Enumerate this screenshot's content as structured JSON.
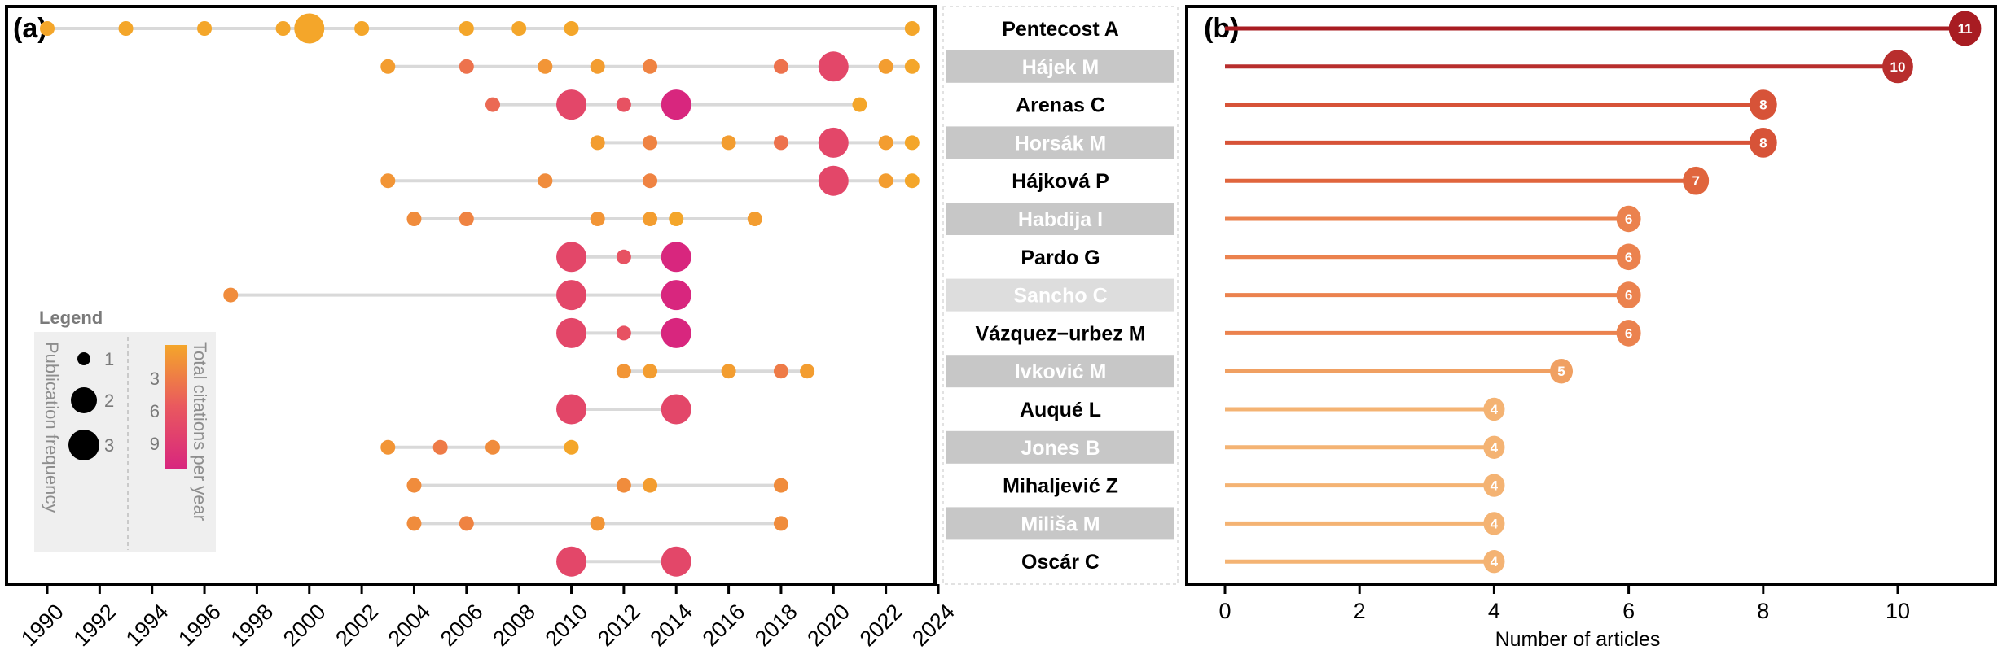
{
  "chart_data": [
    {
      "type": "scatter",
      "panel_label": "(a)",
      "xlabel": "",
      "ylabel": "",
      "x_ticks": [
        "1990",
        "1992",
        "1994",
        "1996",
        "1998",
        "2000",
        "2002",
        "2004",
        "2006",
        "2008",
        "2010",
        "2012",
        "2014",
        "2016",
        "2018",
        "2020",
        "2022",
        "2024"
      ],
      "xlim": [
        1990,
        2024
      ],
      "authors": [
        "Pentecost A",
        "Hájek M",
        "Arenas C",
        "Horsák M",
        "Hájková P",
        "Habdija I",
        "Pardo G",
        "Sancho C",
        "Vázquez−urbez M",
        "Ivković M",
        "Auqué L",
        "Jones B",
        "Mihaljević Z",
        "Miliša M",
        "Oscár C"
      ],
      "series": [
        {
          "author": "Pentecost A",
          "points": [
            {
              "year": 1990,
              "freq": 1,
              "cit": 1
            },
            {
              "year": 1993,
              "freq": 1,
              "cit": 1
            },
            {
              "year": 1996,
              "freq": 1,
              "cit": 1
            },
            {
              "year": 1999,
              "freq": 1,
              "cit": 1
            },
            {
              "year": 2000,
              "freq": 3,
              "cit": 1
            },
            {
              "year": 2002,
              "freq": 1,
              "cit": 1
            },
            {
              "year": 2006,
              "freq": 1,
              "cit": 1
            },
            {
              "year": 2008,
              "freq": 1,
              "cit": 1
            },
            {
              "year": 2010,
              "freq": 1,
              "cit": 1
            },
            {
              "year": 2023,
              "freq": 1,
              "cit": 1
            }
          ]
        },
        {
          "author": "Hájek M",
          "points": [
            {
              "year": 2003,
              "freq": 1,
              "cit": 1.5
            },
            {
              "year": 2006,
              "freq": 1,
              "cit": 4
            },
            {
              "year": 2009,
              "freq": 1,
              "cit": 2
            },
            {
              "year": 2011,
              "freq": 1,
              "cit": 1.5
            },
            {
              "year": 2013,
              "freq": 1,
              "cit": 3
            },
            {
              "year": 2018,
              "freq": 1,
              "cit": 4
            },
            {
              "year": 2020,
              "freq": 3,
              "cit": 7
            },
            {
              "year": 2022,
              "freq": 1,
              "cit": 1.5
            },
            {
              "year": 2023,
              "freq": 1,
              "cit": 1
            }
          ]
        },
        {
          "author": "Arenas C",
          "points": [
            {
              "year": 2007,
              "freq": 1,
              "cit": 4.5
            },
            {
              "year": 2010,
              "freq": 3,
              "cit": 7
            },
            {
              "year": 2012,
              "freq": 1,
              "cit": 6
            },
            {
              "year": 2014,
              "freq": 3,
              "cit": 10
            },
            {
              "year": 2021,
              "freq": 1,
              "cit": 1
            }
          ]
        },
        {
          "author": "Horsák M",
          "points": [
            {
              "year": 2011,
              "freq": 1,
              "cit": 1.5
            },
            {
              "year": 2013,
              "freq": 1,
              "cit": 3
            },
            {
              "year": 2016,
              "freq": 1,
              "cit": 1.5
            },
            {
              "year": 2018,
              "freq": 1,
              "cit": 4
            },
            {
              "year": 2020,
              "freq": 3,
              "cit": 7
            },
            {
              "year": 2022,
              "freq": 1,
              "cit": 1.5
            },
            {
              "year": 2023,
              "freq": 1,
              "cit": 1
            }
          ]
        },
        {
          "author": "Hájková P",
          "points": [
            {
              "year": 2003,
              "freq": 1,
              "cit": 2
            },
            {
              "year": 2009,
              "freq": 1,
              "cit": 2.5
            },
            {
              "year": 2013,
              "freq": 1,
              "cit": 3
            },
            {
              "year": 2020,
              "freq": 3,
              "cit": 7
            },
            {
              "year": 2022,
              "freq": 1,
              "cit": 1.5
            },
            {
              "year": 2023,
              "freq": 1,
              "cit": 1
            }
          ]
        },
        {
          "author": "Habdija I",
          "points": [
            {
              "year": 2004,
              "freq": 1,
              "cit": 2.5
            },
            {
              "year": 2006,
              "freq": 1,
              "cit": 3
            },
            {
              "year": 2011,
              "freq": 1,
              "cit": 2
            },
            {
              "year": 2013,
              "freq": 1,
              "cit": 1.5
            },
            {
              "year": 2014,
              "freq": 1,
              "cit": 1
            },
            {
              "year": 2017,
              "freq": 1,
              "cit": 1.5
            }
          ]
        },
        {
          "author": "Pardo G",
          "points": [
            {
              "year": 2010,
              "freq": 3,
              "cit": 7
            },
            {
              "year": 2012,
              "freq": 1,
              "cit": 6
            },
            {
              "year": 2014,
              "freq": 3,
              "cit": 10
            }
          ]
        },
        {
          "author": "Sancho C",
          "points": [
            {
              "year": 1997,
              "freq": 1,
              "cit": 2.5
            },
            {
              "year": 2010,
              "freq": 3,
              "cit": 7
            },
            {
              "year": 2014,
              "freq": 3,
              "cit": 10
            }
          ]
        },
        {
          "author": "Vázquez−urbez M",
          "points": [
            {
              "year": 2010,
              "freq": 3,
              "cit": 7
            },
            {
              "year": 2012,
              "freq": 1,
              "cit": 6
            },
            {
              "year": 2014,
              "freq": 3,
              "cit": 10
            }
          ]
        },
        {
          "author": "Ivković M",
          "points": [
            {
              "year": 2012,
              "freq": 1,
              "cit": 2
            },
            {
              "year": 2013,
              "freq": 1,
              "cit": 1.5
            },
            {
              "year": 2016,
              "freq": 1,
              "cit": 1.5
            },
            {
              "year": 2018,
              "freq": 1,
              "cit": 3.5
            },
            {
              "year": 2019,
              "freq": 1,
              "cit": 1.5
            }
          ]
        },
        {
          "author": "Auqué L",
          "points": [
            {
              "year": 2010,
              "freq": 3,
              "cit": 7
            },
            {
              "year": 2014,
              "freq": 3,
              "cit": 7
            }
          ]
        },
        {
          "author": "Jones B",
          "points": [
            {
              "year": 2003,
              "freq": 1,
              "cit": 2
            },
            {
              "year": 2005,
              "freq": 1,
              "cit": 3.5
            },
            {
              "year": 2007,
              "freq": 1,
              "cit": 2.5
            },
            {
              "year": 2010,
              "freq": 1,
              "cit": 1
            }
          ]
        },
        {
          "author": "Mihaljević Z",
          "points": [
            {
              "year": 2004,
              "freq": 1,
              "cit": 2.5
            },
            {
              "year": 2012,
              "freq": 1,
              "cit": 2.5
            },
            {
              "year": 2013,
              "freq": 1,
              "cit": 1.5
            },
            {
              "year": 2018,
              "freq": 1,
              "cit": 2.5
            }
          ]
        },
        {
          "author": "Miliša M",
          "points": [
            {
              "year": 2004,
              "freq": 1,
              "cit": 2.5
            },
            {
              "year": 2006,
              "freq": 1,
              "cit": 3
            },
            {
              "year": 2011,
              "freq": 1,
              "cit": 2
            },
            {
              "year": 2018,
              "freq": 1,
              "cit": 2.5
            }
          ]
        },
        {
          "author": "Oscár C",
          "points": [
            {
              "year": 2010,
              "freq": 3,
              "cit": 7
            },
            {
              "year": 2014,
              "freq": 3,
              "cit": 7
            }
          ]
        }
      ],
      "legend": {
        "title": "Legend",
        "size_title": "Publication frequency",
        "size_values": [
          "1",
          "2",
          "3"
        ],
        "color_title": "Total citations per year",
        "color_ticks": [
          "3",
          "6",
          "9"
        ],
        "color_range": [
          1,
          10
        ],
        "colors": [
          "#f4a62a",
          "#e9585f",
          "#d8267e"
        ]
      }
    },
    {
      "type": "bar",
      "style": "lollipop",
      "panel_label": "(b)",
      "xlabel": "Number of articles",
      "ylabel": "",
      "x_ticks": [
        "0",
        "2",
        "4",
        "6",
        "8",
        "10"
      ],
      "xlim": [
        0,
        11
      ],
      "categories": [
        "Pentecost A",
        "Hájek M",
        "Arenas C",
        "Horsák M",
        "Hájková P",
        "Habdija I",
        "Pardo G",
        "Sancho C",
        "Vázquez−urbez M",
        "Ivković M",
        "Auqué L",
        "Jones B",
        "Mihaljević Z",
        "Miliša M",
        "Oscár C"
      ],
      "values": [
        11,
        10,
        8,
        8,
        7,
        6,
        6,
        6,
        6,
        5,
        4,
        4,
        4,
        4,
        4
      ],
      "value_labels": [
        "11",
        "10",
        "8",
        "8",
        "7",
        "6",
        "6",
        "6",
        "6",
        "5",
        "4",
        "4",
        "4",
        "4",
        "4"
      ],
      "colors": [
        "#a81c22",
        "#b82e2d",
        "#d75338",
        "#d75338",
        "#e0653d",
        "#eb824e",
        "#eb824e",
        "#eb824e",
        "#eb824e",
        "#f0a062",
        "#f4b373",
        "#f4b373",
        "#f4b373",
        "#f4b373",
        "#f4b373"
      ]
    }
  ]
}
